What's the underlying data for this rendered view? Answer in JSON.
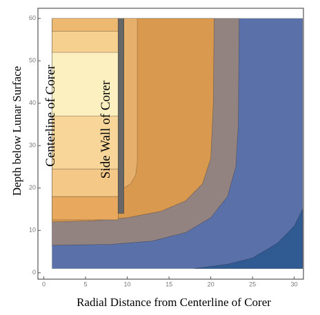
{
  "chart_data": {
    "type": "contour",
    "xlabel": "Radial Distance from Centerline of Corer",
    "ylabel": "Depth below Lunar Surface",
    "annotations": [
      "Centerline of Corer",
      "Side Wall of Corer"
    ],
    "xlim": [
      -0.7,
      31.1
    ],
    "ylim": [
      -1.5,
      62.4
    ],
    "xticks": [
      0,
      5,
      10,
      15,
      20,
      25,
      30
    ],
    "yticks": [
      0,
      10,
      20,
      30,
      40,
      50,
      60
    ],
    "regions": [
      {
        "color": "#5a70a8",
        "x": [
          1,
          31,
          31,
          1
        ],
        "y": [
          1,
          1,
          60,
          60
        ]
      },
      {
        "color": "#2f5a92",
        "x": [
          18,
          22,
          25,
          28,
          30,
          31,
          31
        ],
        "y": [
          1,
          2,
          3.5,
          7,
          11,
          15,
          1
        ]
      },
      {
        "color": "#938380",
        "x": [
          1,
          8,
          13,
          17,
          20,
          22,
          23,
          23.3,
          23.4,
          1
        ],
        "y": [
          6.5,
          6.7,
          7.5,
          9.5,
          13,
          18,
          25,
          35,
          60,
          60
        ]
      },
      {
        "color": "#d99a50",
        "x": [
          1,
          6,
          10,
          14,
          17,
          19,
          20,
          20.3,
          20.4,
          1
        ],
        "y": [
          12,
          12.3,
          13,
          14.5,
          17,
          21,
          27,
          40,
          60,
          60
        ]
      },
      {
        "color": "#e6b06c",
        "x": [
          9.6,
          10.4,
          11,
          11.2,
          11.2,
          9.6
        ],
        "y": [
          20,
          21,
          23,
          26,
          60,
          60
        ]
      },
      {
        "color": "#e8a95e",
        "x": [
          1,
          8.9,
          8.9,
          1
        ],
        "y": [
          12.5,
          12.5,
          18,
          18
        ]
      },
      {
        "color": "#f4c886",
        "x": [
          1,
          8.9,
          8.9,
          1
        ],
        "y": [
          18,
          18,
          24.5,
          24.5
        ]
      },
      {
        "color": "#f8d699",
        "x": [
          1,
          8.9,
          8.9,
          1
        ],
        "y": [
          24.5,
          24.5,
          37,
          37
        ]
      },
      {
        "color": "#fdf0c0",
        "x": [
          1,
          8.9,
          8.9,
          1
        ],
        "y": [
          37,
          37,
          52,
          52
        ]
      },
      {
        "color": "#f6d08f",
        "x": [
          1,
          8.9,
          8.9,
          1
        ],
        "y": [
          52,
          52,
          57,
          57
        ]
      },
      {
        "color": "#edb870",
        "x": [
          1,
          8.9,
          8.9,
          1
        ],
        "y": [
          57,
          57,
          60,
          60
        ]
      },
      {
        "color": "#676767",
        "x": [
          8.9,
          9.6,
          9.6,
          8.9
        ],
        "y": [
          14,
          14,
          60,
          60
        ]
      }
    ]
  }
}
